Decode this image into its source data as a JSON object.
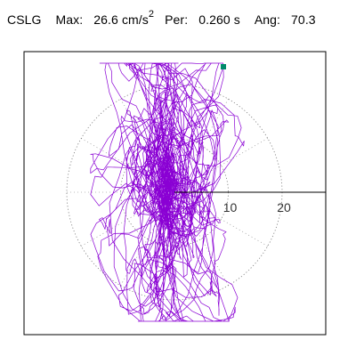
{
  "header": {
    "station": "CSLG",
    "max_label": "Max:",
    "max_value": "26.6",
    "max_unit_base": "cm/s",
    "max_unit_exp": "2",
    "per_label": "Per:",
    "per_value": "0.260",
    "per_unit": "s",
    "ang_label": "Ang:",
    "ang_value": "70.3"
  },
  "polar_plot": {
    "tick_labels": [
      "10",
      "20"
    ],
    "ring_values": [
      10,
      20
    ],
    "max_radius": 28,
    "orientation_angle_deg": 70.3,
    "endpoint_color": "#008a6a",
    "trace_color": "#8a00d4",
    "grid_color": "#7a7a7a"
  }
}
